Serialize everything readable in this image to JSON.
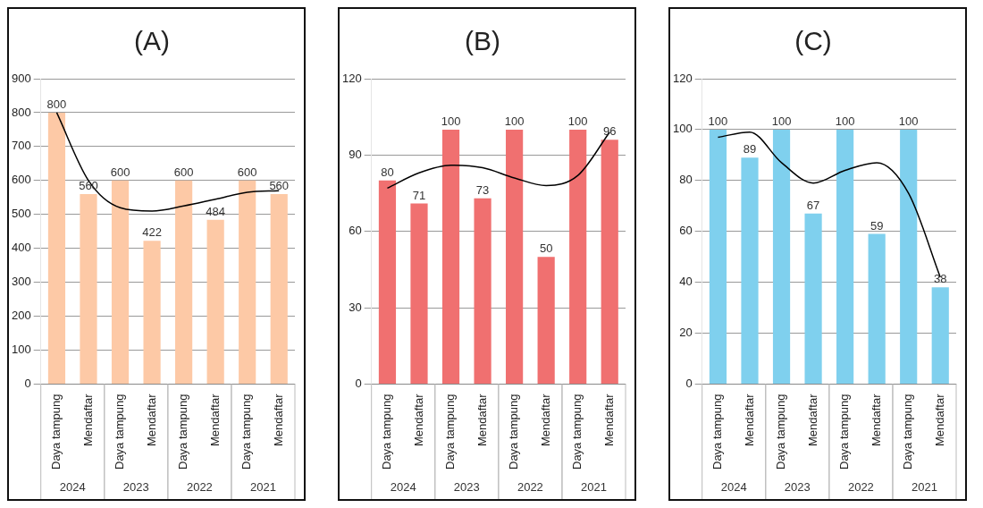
{
  "chart_data": [
    {
      "type": "bar",
      "title": "(A)",
      "categories": [
        "Daya tampung",
        "Mendaftar",
        "Daya tampung",
        "Mendaftar",
        "Daya tampung",
        "Mendaftar",
        "Daya tampung",
        "Mendaftar"
      ],
      "series": [
        {
          "color": "#fdc9a6",
          "values": [
            800,
            560,
            600,
            422,
            600,
            484,
            600,
            560
          ],
          "value_labels": [
            "800",
            "560",
            "600",
            "422",
            "600",
            "484",
            "600",
            "560"
          ]
        },
        {
          "type": "line",
          "color": "#000000",
          "marker": "none",
          "values": [
            800,
            600,
            520,
            510,
            525,
            545,
            565,
            570
          ]
        }
      ],
      "ylim": [
        0,
        900
      ],
      "yticks": [
        0,
        100,
        200,
        300,
        400,
        500,
        600,
        700,
        800,
        900
      ],
      "grid": "y",
      "legend": false,
      "annotations": [
        "2024",
        "2023",
        "2022",
        "2021"
      ]
    },
    {
      "type": "bar",
      "title": "(B)",
      "categories": [
        "Daya tampung",
        "Mendaftar",
        "Daya tampung",
        "Mendaftar",
        "Daya tampung",
        "Mendaftar",
        "Daya tampung",
        "Mendaftar"
      ],
      "series": [
        {
          "color": "#f07070",
          "values": [
            80,
            71,
            100,
            73,
            100,
            50,
            100,
            96
          ],
          "value_labels": [
            "80",
            "71",
            "100",
            "73",
            "100",
            "50",
            "100",
            "96"
          ]
        },
        {
          "type": "line",
          "color": "#000000",
          "marker": "none",
          "values": [
            77,
            83,
            86,
            85,
            81,
            78,
            82,
            99
          ]
        }
      ],
      "ylim": [
        0,
        120
      ],
      "yticks": [
        0,
        30,
        60,
        90,
        120
      ],
      "grid": "y",
      "legend": false,
      "annotations": [
        "2024",
        "2023",
        "2022",
        "2021"
      ]
    },
    {
      "type": "bar",
      "title": "(C)",
      "categories": [
        "Daya tampung",
        "Mendaftar",
        "Daya tampung",
        "Mendaftar",
        "Daya tampung",
        "Mendaftar",
        "Daya tampung",
        "Mendaftar"
      ],
      "series": [
        {
          "color": "#7fd0ee",
          "values": [
            100,
            89,
            100,
            67,
            100,
            59,
            100,
            38
          ],
          "value_labels": [
            "100",
            "89",
            "100",
            "67",
            "100",
            "59",
            "100",
            "38"
          ]
        },
        {
          "type": "line",
          "color": "#000000",
          "marker": "none",
          "values": [
            97,
            99,
            87,
            79,
            84,
            87,
            75,
            42
          ]
        }
      ],
      "ylim": [
        0,
        120
      ],
      "yticks": [
        0,
        20,
        40,
        60,
        80,
        100,
        120
      ],
      "grid": "y",
      "legend": false,
      "annotations": [
        "2024",
        "2023",
        "2022",
        "2021"
      ]
    }
  ]
}
